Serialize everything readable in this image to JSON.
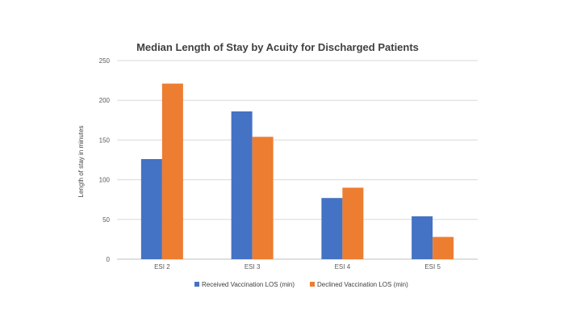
{
  "chart_data": {
    "type": "bar",
    "title": "Median Length of Stay by Acuity for Discharged Patients",
    "xlabel": "",
    "ylabel": "Length of stay in minutes",
    "ylim": [
      0,
      250
    ],
    "yticks": [
      0,
      50,
      100,
      150,
      200,
      250
    ],
    "categories": [
      "ESI 2",
      "ESI 3",
      "ESI 4",
      "ESI 5"
    ],
    "series": [
      {
        "name": "Received Vaccination LOS (min)",
        "color": "#4472C4",
        "values": [
          126,
          186,
          77,
          54
        ]
      },
      {
        "name": "Declined Vaccination LOS (min)",
        "color": "#ED7D31",
        "values": [
          221,
          154,
          90,
          28
        ]
      }
    ],
    "grid": true,
    "legend": "bottom"
  }
}
